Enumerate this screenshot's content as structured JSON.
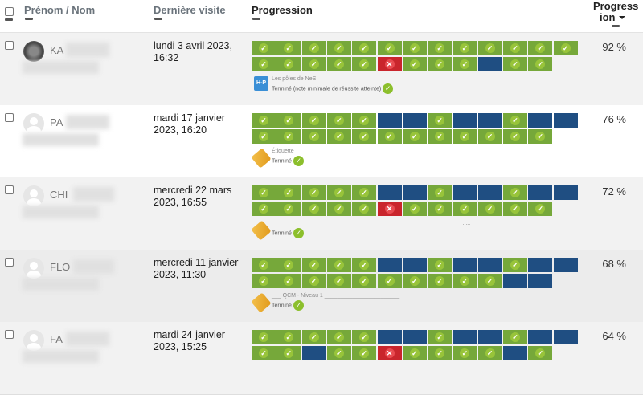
{
  "header": {
    "name": "Prénom / Nom",
    "last_visit": "Dernière visite",
    "progression": "Progression",
    "percent_line1": "Progress",
    "percent_line2": "ion",
    "sort_icon": "caret-down-icon"
  },
  "colors": {
    "complete": "#76a83a",
    "not_complete": "#1f4e82",
    "fail": "#c9252c"
  },
  "rows": [
    {
      "name": "KA",
      "date": "lundi 3 avril 2023, 16:32",
      "row1": "ccccccccccccc",
      "row2": "cccccfcccncc",
      "icon": "h5p-icon",
      "activity": "Les pôles de NeS",
      "status": "Terminé (note minimale de réussite atteinte)",
      "percent": "92 %",
      "photo": true
    },
    {
      "name": "PA",
      "date": "mardi 17 janvier 2023, 16:20",
      "row1": "cccccnncnncnn",
      "row2": "cccccccccccc",
      "icon": "label-tag-icon",
      "activity": "Étiquette",
      "status": "Terminé",
      "percent": "76 %"
    },
    {
      "name": "CHI",
      "date": "mercredi 22 mars 2023, 16:55",
      "row1": "cccccnncnncnn",
      "row2": "cccccfcccccc",
      "icon": "label-tag-icon",
      "activity": "_____________________________________________________________.....",
      "status": "Terminé",
      "percent": "72 %"
    },
    {
      "name": "FLO",
      "date": "mercredi 11 janvier 2023, 11:30",
      "row1": "cccccnncnncnn",
      "row2": "ccccccccccnn",
      "icon": "label-tag-icon",
      "activity": "___ QCM - Niveau 1 ________________________",
      "status": "Terminé",
      "percent": "68 %"
    },
    {
      "name": "FA",
      "date": "mardi 24 janvier 2023, 15:25",
      "row1": "cccccnncnncnn",
      "row2": "ccnccfccccnc",
      "icon": "",
      "activity": "",
      "status": "",
      "percent": "64 %"
    }
  ]
}
